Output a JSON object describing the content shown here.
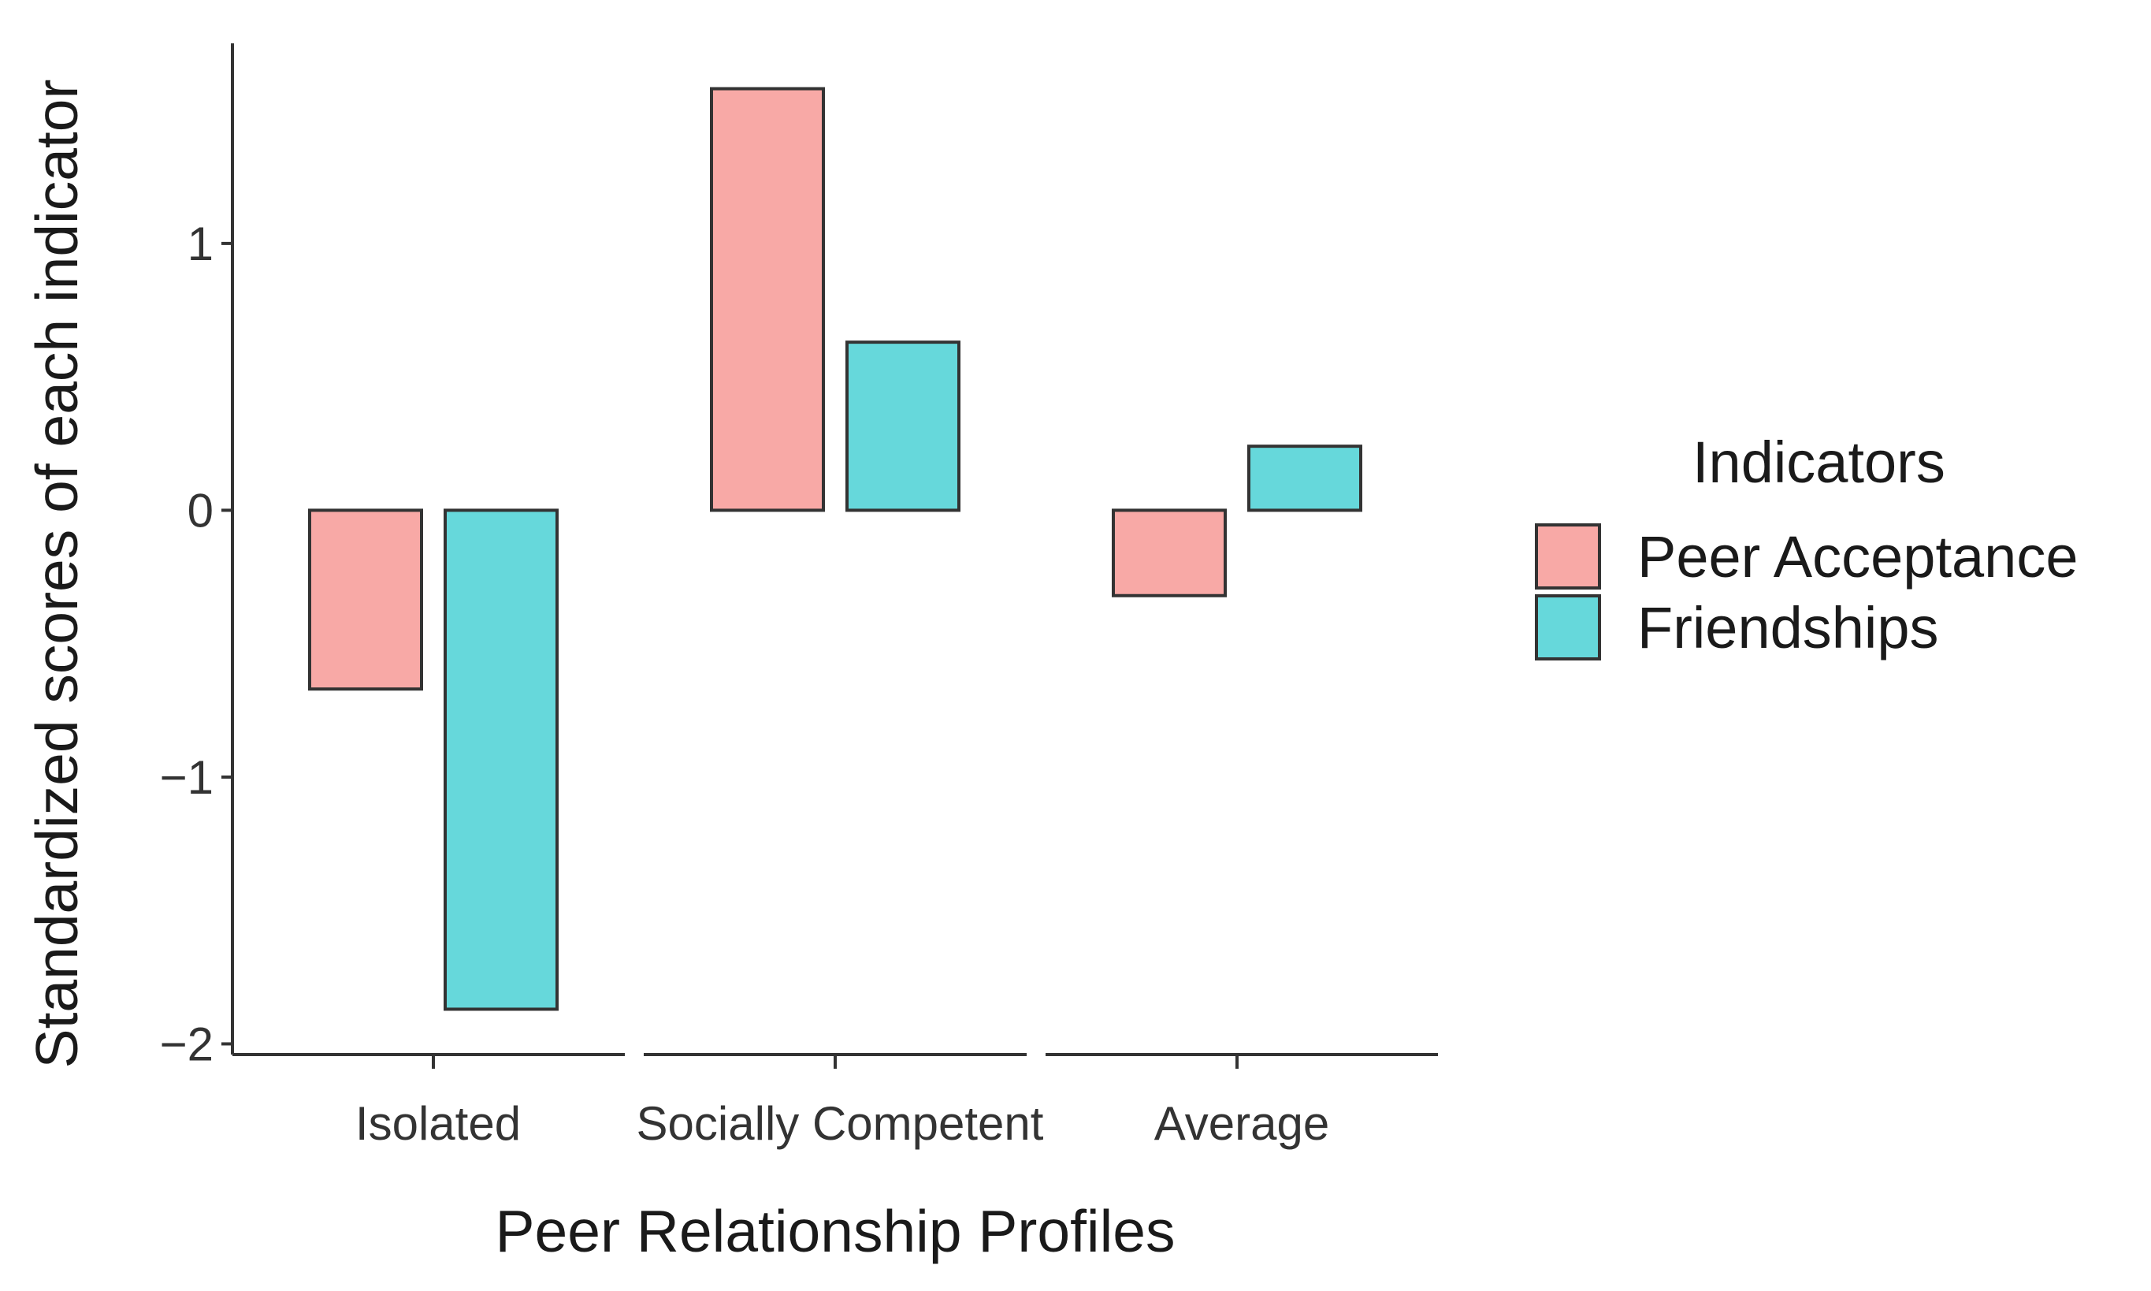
{
  "chart_data": {
    "type": "bar",
    "title": "",
    "xlabel": "Peer Relationship Profiles",
    "ylabel": "Standardized scores of each indicator",
    "categories": [
      "Isolated",
      "Socially Competent",
      "Average"
    ],
    "series": [
      {
        "name": "Peer Acceptance",
        "color": "#F8A9A6",
        "values": [
          -0.67,
          1.58,
          -0.32
        ]
      },
      {
        "name": "Friendships",
        "color": "#66D8DB",
        "values": [
          -1.87,
          0.63,
          0.24
        ]
      }
    ],
    "ylim": [
      -2.04,
      1.75
    ],
    "yticks": [
      -2,
      -1,
      0,
      1
    ],
    "ytick_labels": [
      "−2",
      "−1",
      "0",
      "1"
    ],
    "grid": false,
    "legend": {
      "title": "Indicators",
      "placement": "right"
    }
  }
}
